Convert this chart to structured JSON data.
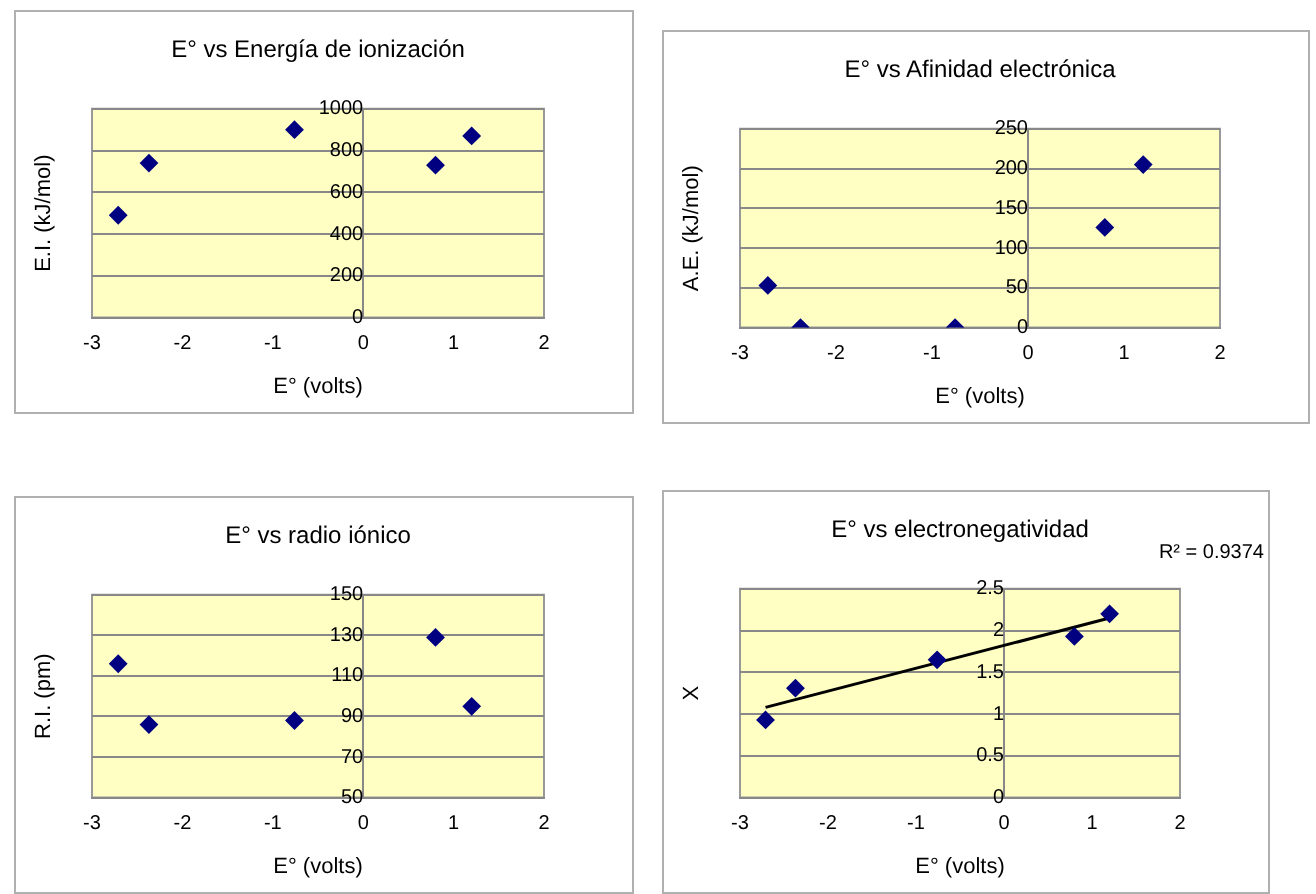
{
  "chart_data": [
    {
      "type": "scatter",
      "title": "E° vs Energía de ionización",
      "xlabel": "E° (volts)",
      "ylabel": "E.I. (kJ/mol)",
      "x": [
        -2.71,
        -2.37,
        -0.76,
        0.8,
        1.2
      ],
      "series": [
        {
          "color": "#000080",
          "values": [
            490,
            740,
            900,
            730,
            870
          ]
        }
      ],
      "xlim": [
        -3,
        2
      ],
      "xticks": [
        -3,
        -2,
        -1,
        0,
        1,
        2
      ],
      "ylim": [
        0,
        1000
      ],
      "yticks": [
        0,
        200,
        400,
        600,
        800,
        1000
      ],
      "grid": "y",
      "marker": "diamond"
    },
    {
      "type": "scatter",
      "title": "E° vs Afinidad electrónica",
      "xlabel": "E° (volts)",
      "ylabel": "A.E. (kJ/mol)",
      "x": [
        -2.71,
        -2.37,
        -0.76,
        0.8,
        1.2
      ],
      "series": [
        {
          "color": "#000080",
          "values": [
            53,
            0,
            0,
            126,
            205
          ]
        }
      ],
      "xlim": [
        -3,
        2
      ],
      "xticks": [
        -3,
        -2,
        -1,
        0,
        1,
        2
      ],
      "ylim": [
        0,
        250
      ],
      "yticks": [
        0,
        50,
        100,
        150,
        200,
        250
      ],
      "grid": "y",
      "marker": "diamond"
    },
    {
      "type": "scatter",
      "title": "E° vs radio iónico",
      "xlabel": "E° (volts)",
      "ylabel": "R.I. (pm)",
      "x": [
        -2.71,
        -2.37,
        -0.76,
        0.8,
        1.2
      ],
      "series": [
        {
          "color": "#000080",
          "values": [
            116,
            86,
            88,
            129,
            95
          ]
        }
      ],
      "xlim": [
        -3,
        2
      ],
      "xticks": [
        -3,
        -2,
        -1,
        0,
        1,
        2
      ],
      "ylim": [
        50,
        150
      ],
      "yticks": [
        50,
        70,
        90,
        110,
        130,
        150
      ],
      "grid": "y",
      "marker": "diamond"
    },
    {
      "type": "scatter",
      "title": "E° vs electronegatividad",
      "xlabel": "E° (volts)",
      "ylabel": "X",
      "x": [
        -2.71,
        -2.37,
        -0.76,
        0.8,
        1.2
      ],
      "series": [
        {
          "color": "#000080",
          "values": [
            0.93,
            1.31,
            1.65,
            1.93,
            2.2
          ]
        },
        {
          "type": "line",
          "color": "#000000",
          "marker": "none",
          "x": [
            -2.71,
            1.2
          ],
          "values": [
            1.08,
            2.15
          ]
        }
      ],
      "xlim": [
        -3,
        2
      ],
      "xticks": [
        -3,
        -2,
        -1,
        0,
        1,
        2
      ],
      "ylim": [
        0,
        2.5
      ],
      "yticks": [
        0,
        0.5,
        1,
        1.5,
        2,
        2.5
      ],
      "grid": "y",
      "marker": "diamond",
      "annotations": [
        "R² = 0.9374"
      ]
    }
  ]
}
